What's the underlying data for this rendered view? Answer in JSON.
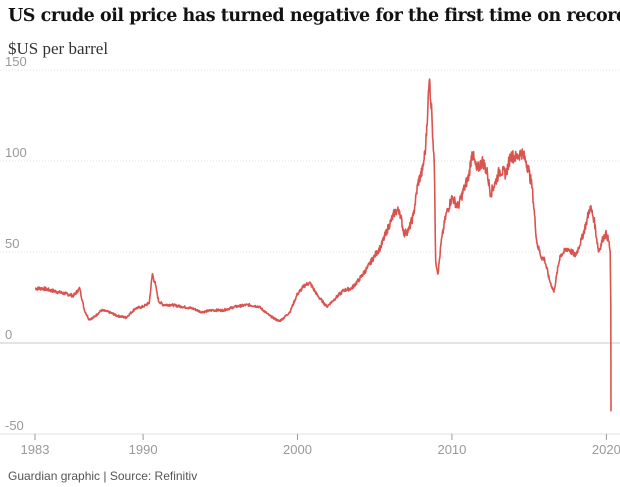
{
  "chart_data": {
    "type": "line",
    "title": "US crude oil price has turned negative for the first time on record",
    "ylabel": "$US per barrel",
    "xlabel": "",
    "source": "Guardian graphic | Source: Refinitiv",
    "y_ticks": [
      150,
      100,
      50,
      0,
      -50
    ],
    "y_tick_labels": [
      "150",
      "100",
      "50",
      "0",
      "-50"
    ],
    "x_ticks": [
      1983,
      1990,
      2000,
      2010,
      2020
    ],
    "x_tick_labels": [
      "1983",
      "1990",
      "2000",
      "2010",
      "2020"
    ],
    "ylim": [
      -50,
      150
    ],
    "xlim": [
      1983,
      2020.3
    ],
    "grid": true,
    "colors": {
      "line": "#d9534f",
      "grid": "#e0e0e0",
      "zero": "#c8c8c8",
      "axis": "#999999"
    },
    "series": [
      {
        "name": "",
        "x": [
          1983.0,
          1983.5,
          1984.0,
          1984.5,
          1985.0,
          1985.5,
          1985.9,
          1986.2,
          1986.5,
          1986.8,
          1987.3,
          1987.8,
          1988.3,
          1988.9,
          1989.5,
          1990.0,
          1990.4,
          1990.6,
          1990.8,
          1991.0,
          1991.3,
          1991.8,
          1992.5,
          1993.2,
          1993.8,
          1994.5,
          1995.2,
          1996.0,
          1996.8,
          1997.5,
          1998.2,
          1998.8,
          1999.0,
          1999.5,
          2000.0,
          2000.5,
          2000.8,
          2001.3,
          2001.9,
          2002.5,
          2003.0,
          2003.5,
          2004.0,
          2004.5,
          2005.0,
          2005.4,
          2005.8,
          2006.3,
          2006.6,
          2006.9,
          2007.2,
          2007.5,
          2007.8,
          2008.1,
          2008.3,
          2008.45,
          2008.55,
          2008.7,
          2008.85,
          2008.95,
          2009.1,
          2009.3,
          2009.6,
          2010.0,
          2010.4,
          2010.8,
          2011.1,
          2011.3,
          2011.6,
          2012.0,
          2012.3,
          2012.5,
          2012.8,
          2013.1,
          2013.5,
          2013.8,
          2014.2,
          2014.5,
          2014.8,
          2015.0,
          2015.2,
          2015.5,
          2015.8,
          2016.0,
          2016.3,
          2016.6,
          2017.0,
          2017.5,
          2018.0,
          2018.4,
          2018.7,
          2018.95,
          2019.2,
          2019.5,
          2019.8,
          2020.0,
          2020.15,
          2020.25,
          2020.29,
          2020.3
        ],
        "values": [
          30,
          30,
          29,
          28,
          27,
          26,
          30,
          18,
          13,
          14,
          18,
          17,
          15,
          14,
          19,
          20,
          22,
          38,
          32,
          23,
          21,
          21,
          20,
          19,
          17,
          18,
          18,
          20,
          21,
          20,
          15,
          12,
          13,
          17,
          27,
          32,
          33,
          26,
          20,
          25,
          29,
          30,
          35,
          41,
          48,
          53,
          62,
          72,
          73,
          60,
          62,
          70,
          88,
          95,
          108,
          132,
          145,
          125,
          100,
          45,
          38,
          55,
          70,
          80,
          75,
          85,
          92,
          105,
          95,
          100,
          93,
          82,
          88,
          95,
          93,
          103,
          102,
          105,
          100,
          94,
          85,
          55,
          47,
          46,
          35,
          28,
          48,
          52,
          48,
          57,
          66,
          75,
          68,
          50,
          58,
          60,
          56,
          50,
          20,
          -37.6
        ]
      }
    ]
  }
}
